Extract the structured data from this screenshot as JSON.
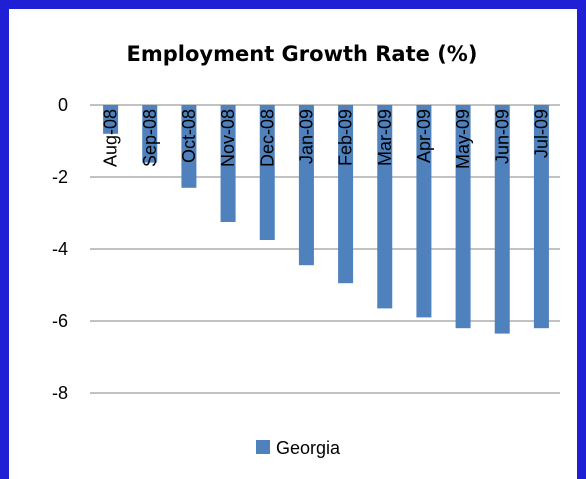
{
  "chart_data": {
    "type": "bar",
    "title": "Employment Growth Rate (%)",
    "categories": [
      "Aug-08",
      "Sep-08",
      "Oct-08",
      "Nov-08",
      "Dec-08",
      "Jan-09",
      "Feb-09",
      "Mar-09",
      "Apr-09",
      "May-09",
      "Jun-09",
      "Jul-09"
    ],
    "series": [
      {
        "name": "Georgia",
        "color": "#4f81bd",
        "values": [
          -0.8,
          -1.6,
          -2.3,
          -3.25,
          -3.75,
          -4.45,
          -4.95,
          -5.65,
          -5.9,
          -6.2,
          -6.35,
          -6.2
        ]
      }
    ],
    "ylim": [
      -8,
      0
    ],
    "yticks": [
      0,
      -2,
      -4,
      -6,
      -8
    ],
    "grid": true,
    "legend_position": "bottom",
    "frame_color": "#1f1fd6"
  }
}
